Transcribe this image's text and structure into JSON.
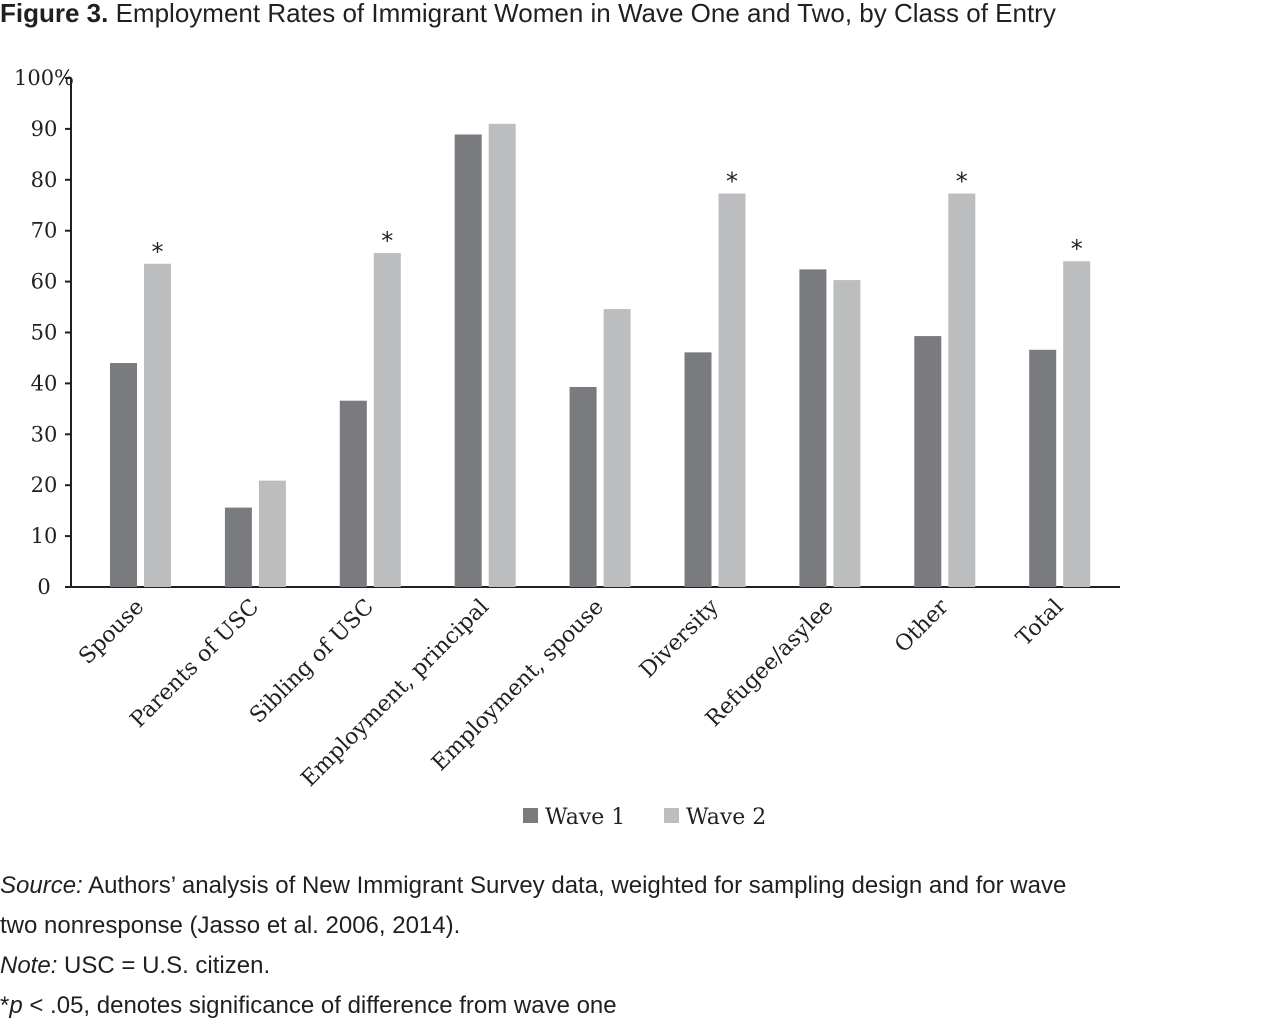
{
  "figure": {
    "label": "Figure 3.",
    "title": "Employment Rates of Immigrant Women in Wave One and Two, by Class of Entry"
  },
  "colors": {
    "wave1": "#7a7b7e",
    "wave2": "#bcbdbf",
    "axis": "#231f20",
    "text": "#231f20"
  },
  "chart_data": {
    "type": "bar",
    "title": "Employment Rates of Immigrant Women in Wave One and Two, by Class of Entry",
    "xlabel": "",
    "ylabel": "",
    "ylim": [
      0,
      100
    ],
    "yticks": [
      "0",
      "10",
      "20",
      "30",
      "40",
      "50",
      "60",
      "70",
      "80",
      "90",
      "100%"
    ],
    "categories": [
      "Spouse",
      "Parents of USC",
      "Sibling of USC",
      "Employment, principal",
      "Employment, spouse",
      "Diversity",
      "Refugee/asylee",
      "Other",
      "Total"
    ],
    "series": [
      {
        "name": "Wave 1",
        "color": "#7a7b7e",
        "values": [
          44,
          15.6,
          36.6,
          88.9,
          39.3,
          46.1,
          62.4,
          49.3,
          46.6
        ]
      },
      {
        "name": "Wave 2",
        "color": "#bcbdbf",
        "values": [
          63.5,
          20.9,
          65.6,
          91,
          54.6,
          77.3,
          60.3,
          77.3,
          64
        ]
      }
    ],
    "significant_wave2": [
      true,
      false,
      true,
      false,
      false,
      true,
      false,
      true,
      true
    ],
    "significance_marker": "*",
    "grid": false,
    "legend_position": "bottom-center"
  },
  "notes": {
    "source_label": "Source:",
    "source_line1": " Authors’ analysis of New Immigrant Survey data, weighted for sampling design and for wave",
    "source_line2": "two nonresponse (Jasso et al. 2006, 2014).",
    "note_label": "Note:",
    "note_text": " USC = U.S. citizen.",
    "sig_prefix": "*",
    "sig_p": "p",
    "sig_text": " < .05, denotes significance of difference from wave one"
  }
}
